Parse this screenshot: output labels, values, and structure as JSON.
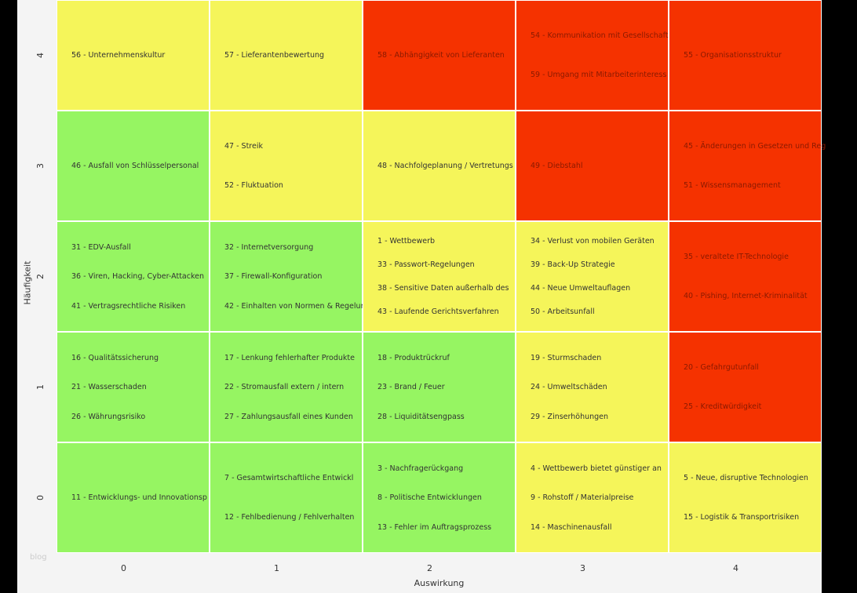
{
  "chart_data": {
    "type": "heatmap",
    "xlabel": "Auswirkung",
    "ylabel": "Häufigkeit",
    "x_ticks": [
      "0",
      "1",
      "2",
      "3",
      "4"
    ],
    "y_ticks": [
      "0",
      "1",
      "2",
      "3",
      "4"
    ],
    "watermark": "blog",
    "colors": {
      "low": "#96f562",
      "medium": "#f5f55a",
      "high": "#f53200"
    },
    "cells": [
      {
        "x": 0,
        "y": 4,
        "level": "medium",
        "items": [
          "56 - Unternehmenskultur"
        ]
      },
      {
        "x": 1,
        "y": 4,
        "level": "medium",
        "items": [
          "57 - Lieferantenbewertung"
        ]
      },
      {
        "x": 2,
        "y": 4,
        "level": "high",
        "items": [
          "58 - Abhängigkeit von Lieferanten"
        ]
      },
      {
        "x": 3,
        "y": 4,
        "level": "high",
        "items": [
          "54 - Kommunikation mit Gesellschaft",
          "59 - Umgang mit Mitarbeiterinteress"
        ]
      },
      {
        "x": 4,
        "y": 4,
        "level": "high",
        "items": [
          "55 - Organisationsstruktur"
        ]
      },
      {
        "x": 0,
        "y": 3,
        "level": "low",
        "items": [
          "46 - Ausfall von Schlüsselpersonal"
        ]
      },
      {
        "x": 1,
        "y": 3,
        "level": "medium",
        "items": [
          "47 - Streik",
          "52 - Fluktuation"
        ]
      },
      {
        "x": 2,
        "y": 3,
        "level": "medium",
        "items": [
          "48 - Nachfolgeplanung / Vertretungs"
        ]
      },
      {
        "x": 3,
        "y": 3,
        "level": "high",
        "items": [
          "49 - Diebstahl"
        ]
      },
      {
        "x": 4,
        "y": 3,
        "level": "high",
        "items": [
          "45 - Änderungen in Gesetzen und Reg",
          "51 - Wissensmanagement"
        ]
      },
      {
        "x": 0,
        "y": 2,
        "level": "low",
        "items": [
          "31 - EDV-Ausfall",
          "36 - Viren, Hacking, Cyber-Attacken",
          "41 - Vertragsrechtliche Risiken"
        ]
      },
      {
        "x": 1,
        "y": 2,
        "level": "low",
        "items": [
          "32 - Internetversorgung",
          "37 - Firewall-Konfiguration",
          "42 - Einhalten von Normen & Regelun"
        ]
      },
      {
        "x": 2,
        "y": 2,
        "level": "medium",
        "items": [
          "1 - Wettbewerb",
          "33 - Passwort-Regelungen",
          "38 - Sensitive Daten außerhalb des",
          "43 - Laufende Gerichtsverfahren"
        ]
      },
      {
        "x": 3,
        "y": 2,
        "level": "medium",
        "items": [
          "34 - Verlust von mobilen Geräten",
          "39 - Back-Up Strategie",
          "44 - Neue Umweltauflagen",
          "50 - Arbeitsunfall"
        ]
      },
      {
        "x": 4,
        "y": 2,
        "level": "high",
        "items": [
          "35 - veraltete IT-Technologie",
          "40 - Pishing, Internet-Kriminalität"
        ]
      },
      {
        "x": 0,
        "y": 1,
        "level": "low",
        "items": [
          "16 - Qualitätssicherung",
          "21 - Wasserschaden",
          "26 - Währungsrisiko"
        ]
      },
      {
        "x": 1,
        "y": 1,
        "level": "low",
        "items": [
          "17 - Lenkung fehlerhafter Produkte",
          "22 - Stromausfall extern / intern",
          "27 - Zahlungsausfall eines Kunden"
        ]
      },
      {
        "x": 2,
        "y": 1,
        "level": "low",
        "items": [
          "18 - Produktrückruf",
          "23 - Brand / Feuer",
          "28 - Liquiditätsengpass"
        ]
      },
      {
        "x": 3,
        "y": 1,
        "level": "medium",
        "items": [
          "19 - Sturmschaden",
          "24 - Umweltschäden",
          "29 - Zinserhöhungen"
        ]
      },
      {
        "x": 4,
        "y": 1,
        "level": "high",
        "items": [
          "20 - Gefahrgutunfall",
          "25 - Kreditwürdigkeit"
        ]
      },
      {
        "x": 0,
        "y": 0,
        "level": "low",
        "items": [
          "11 - Entwicklungs- und Innovationsp"
        ]
      },
      {
        "x": 1,
        "y": 0,
        "level": "low",
        "items": [
          "7 - Gesamtwirtschaftliche Entwickl",
          "12 - Fehlbedienung / Fehlverhalten"
        ]
      },
      {
        "x": 2,
        "y": 0,
        "level": "low",
        "items": [
          "3 - Nachfragerückgang",
          "8 - Politische Entwicklungen",
          "13 - Fehler im Auftragsprozess"
        ]
      },
      {
        "x": 3,
        "y": 0,
        "level": "medium",
        "items": [
          "4 - Wettbewerb bietet günstiger an",
          "9 - Rohstoff / Materialpreise",
          "14 - Maschinenausfall"
        ]
      },
      {
        "x": 4,
        "y": 0,
        "level": "medium",
        "items": [
          "5 - Neue, disruptive Technologien",
          "15 - Logistik & Transportrisiken"
        ]
      }
    ]
  }
}
